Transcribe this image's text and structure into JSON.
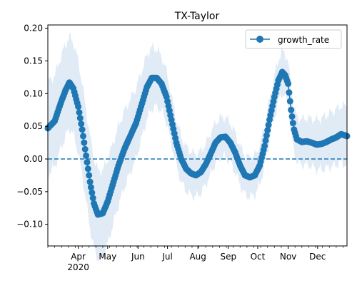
{
  "chart_data": {
    "type": "line",
    "title": "TX-Taylor",
    "xlabel": "",
    "ylabel": "",
    "x_start": "2020-03-01",
    "x_end": "2020-12-31",
    "ylim": [
      -0.133,
      0.205
    ],
    "yticks": [
      -0.1,
      -0.05,
      0.0,
      0.05,
      0.1,
      0.15,
      0.2
    ],
    "ytick_labels": [
      "−0.10",
      "−0.05",
      "0.00",
      "0.05",
      "0.10",
      "0.15",
      "0.20"
    ],
    "xtick_labels": [
      {
        "date": "2020-04-01",
        "label": "Apr",
        "sublabel": "2020"
      },
      {
        "date": "2020-05-01",
        "label": "May",
        "sublabel": ""
      },
      {
        "date": "2020-06-01",
        "label": "Jun",
        "sublabel": ""
      },
      {
        "date": "2020-07-01",
        "label": "Jul",
        "sublabel": ""
      },
      {
        "date": "2020-08-01",
        "label": "Aug",
        "sublabel": ""
      },
      {
        "date": "2020-09-01",
        "label": "Sep",
        "sublabel": ""
      },
      {
        "date": "2020-10-01",
        "label": "Oct",
        "sublabel": ""
      },
      {
        "date": "2020-11-01",
        "label": "Nov",
        "sublabel": ""
      },
      {
        "date": "2020-12-01",
        "label": "Dec",
        "sublabel": ""
      }
    ],
    "reference_line": {
      "y": 0,
      "style": "dashed"
    },
    "legend": {
      "position": "top-right",
      "entries": [
        "growth_rate"
      ]
    },
    "colors": {
      "series": "#1f77b4",
      "band": "#c6dbef"
    },
    "series": [
      {
        "name": "growth_rate",
        "band_halfwidth": [
          0.07,
          0.07,
          0.055,
          0.035,
          0.03,
          0.03,
          0.035,
          0.045
        ],
        "points": [
          [
            "2020-03-01",
            0.047
          ],
          [
            "2020-03-08",
            0.058
          ],
          [
            "2020-03-14",
            0.085
          ],
          [
            "2020-03-19",
            0.105
          ],
          [
            "2020-03-23",
            0.117
          ],
          [
            "2020-03-27",
            0.108
          ],
          [
            "2020-04-01",
            0.08
          ],
          [
            "2020-04-05",
            0.045
          ],
          [
            "2020-04-09",
            0.005
          ],
          [
            "2020-04-13",
            -0.035
          ],
          [
            "2020-04-17",
            -0.068
          ],
          [
            "2020-04-21",
            -0.085
          ],
          [
            "2020-04-26",
            -0.083
          ],
          [
            "2020-05-01",
            -0.065
          ],
          [
            "2020-05-06",
            -0.04
          ],
          [
            "2020-05-12",
            -0.01
          ],
          [
            "2020-05-18",
            0.015
          ],
          [
            "2020-05-24",
            0.035
          ],
          [
            "2020-05-30",
            0.055
          ],
          [
            "2020-06-05",
            0.085
          ],
          [
            "2020-06-10",
            0.11
          ],
          [
            "2020-06-15",
            0.124
          ],
          [
            "2020-06-20",
            0.124
          ],
          [
            "2020-06-25",
            0.115
          ],
          [
            "2020-06-30",
            0.095
          ],
          [
            "2020-07-05",
            0.06
          ],
          [
            "2020-07-10",
            0.025
          ],
          [
            "2020-07-15",
            0.0
          ],
          [
            "2020-07-20",
            -0.015
          ],
          [
            "2020-07-25",
            -0.022
          ],
          [
            "2020-07-30",
            -0.025
          ],
          [
            "2020-08-04",
            -0.02
          ],
          [
            "2020-08-09",
            -0.008
          ],
          [
            "2020-08-14",
            0.008
          ],
          [
            "2020-08-19",
            0.025
          ],
          [
            "2020-08-24",
            0.033
          ],
          [
            "2020-08-29",
            0.034
          ],
          [
            "2020-09-03",
            0.025
          ],
          [
            "2020-09-08",
            0.01
          ],
          [
            "2020-09-13",
            -0.01
          ],
          [
            "2020-09-18",
            -0.025
          ],
          [
            "2020-09-23",
            -0.028
          ],
          [
            "2020-09-28",
            -0.025
          ],
          [
            "2020-10-03",
            -0.01
          ],
          [
            "2020-10-08",
            0.02
          ],
          [
            "2020-10-13",
            0.06
          ],
          [
            "2020-10-18",
            0.095
          ],
          [
            "2020-10-22",
            0.12
          ],
          [
            "2020-10-26",
            0.133
          ],
          [
            "2020-10-29",
            0.128
          ],
          [
            "2020-11-01",
            0.115
          ],
          [
            "2020-11-04",
            0.075
          ],
          [
            "2020-11-07",
            0.045
          ],
          [
            "2020-11-10",
            0.03
          ],
          [
            "2020-11-15",
            0.026
          ],
          [
            "2020-11-20",
            0.027
          ],
          [
            "2020-11-25",
            0.025
          ],
          [
            "2020-11-30",
            0.022
          ],
          [
            "2020-12-05",
            0.023
          ],
          [
            "2020-12-10",
            0.026
          ],
          [
            "2020-12-15",
            0.03
          ],
          [
            "2020-12-20",
            0.033
          ],
          [
            "2020-12-25",
            0.038
          ],
          [
            "2020-12-31",
            0.035
          ]
        ]
      }
    ]
  }
}
